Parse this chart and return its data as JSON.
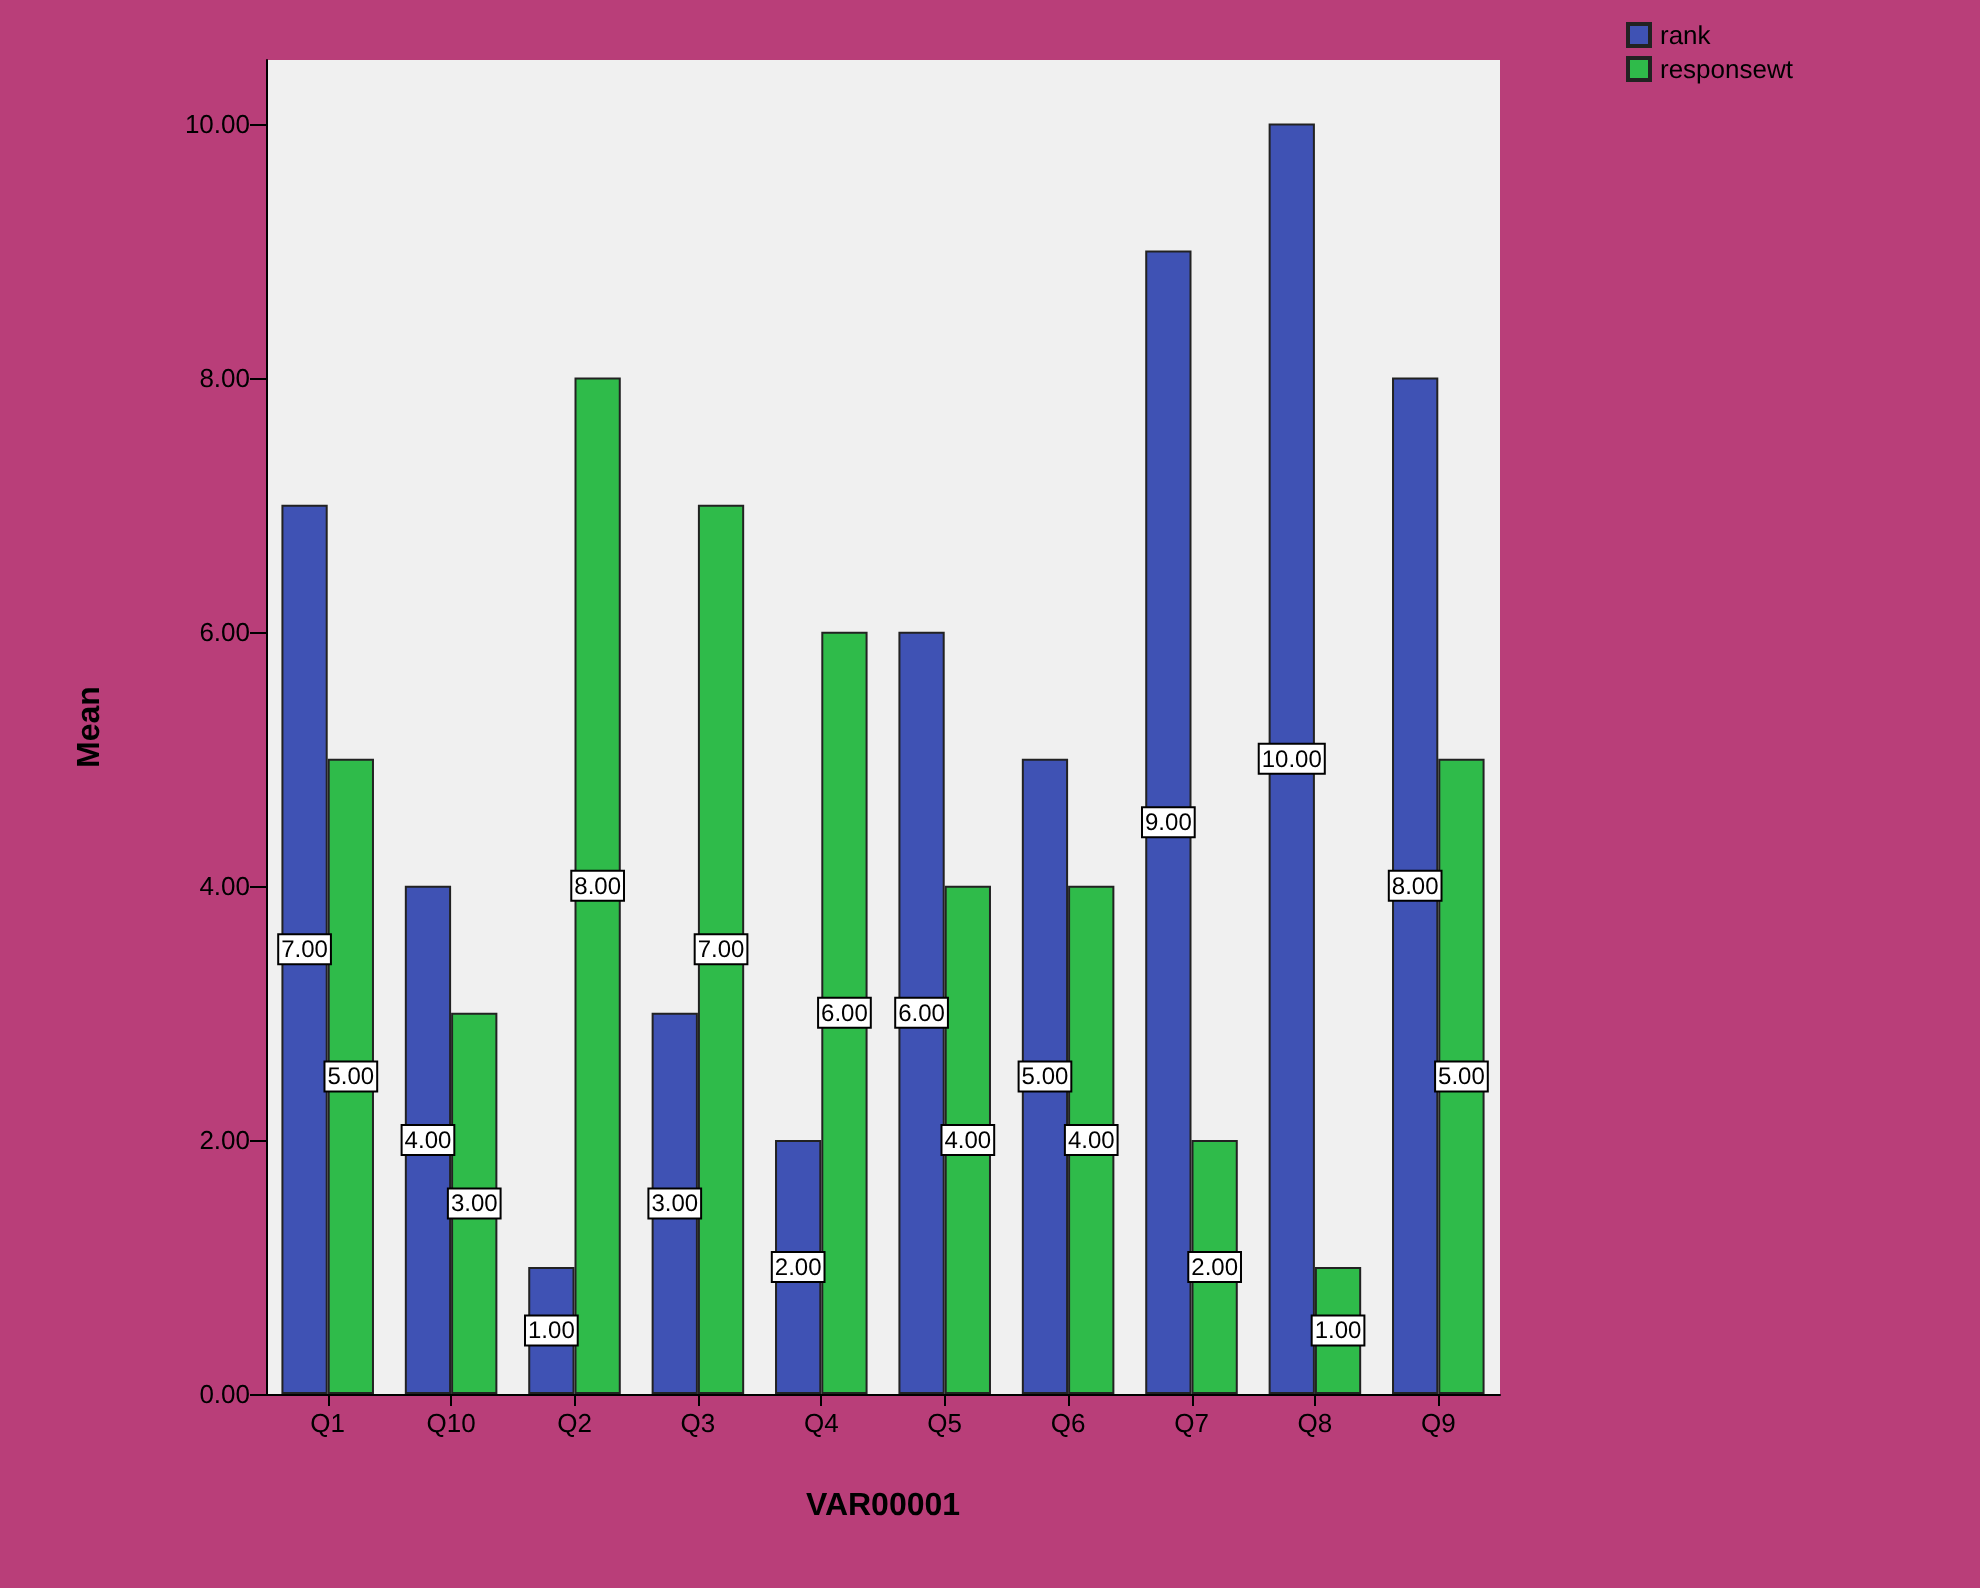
{
  "chart_data": {
    "type": "bar",
    "xlabel": "VAR00001",
    "ylabel": "Mean",
    "categories": [
      "Q1",
      "Q10",
      "Q2",
      "Q3",
      "Q4",
      "Q5",
      "Q6",
      "Q7",
      "Q8",
      "Q9"
    ],
    "series": [
      {
        "name": "rank",
        "color": "#3f52b4",
        "values": [
          7,
          4,
          1,
          3,
          2,
          6,
          5,
          9,
          10,
          8
        ],
        "value_labels": [
          "7.00",
          "4.00",
          "1.00",
          "3.00",
          "2.00",
          "6.00",
          "5.00",
          "9.00",
          "10.00",
          "8.00"
        ]
      },
      {
        "name": "responsewt",
        "color": "#2fbb4a",
        "values": [
          5,
          3,
          8,
          7,
          6,
          4,
          4,
          2,
          1,
          5
        ],
        "value_labels": [
          "5.00",
          "3.00",
          "8.00",
          "7.00",
          "6.00",
          "4.00",
          "4.00",
          "2.00",
          "1.00",
          "5.00"
        ]
      }
    ],
    "ylim": [
      0,
      10.5
    ],
    "yticks": [
      {
        "value": 0,
        "label": "0.00"
      },
      {
        "value": 2,
        "label": "2.00"
      },
      {
        "value": 4,
        "label": "4.00"
      },
      {
        "value": 6,
        "label": "6.00"
      },
      {
        "value": 8,
        "label": "8.00"
      },
      {
        "value": 10,
        "label": "10.00"
      }
    ],
    "grid": false,
    "legend": "top right"
  }
}
